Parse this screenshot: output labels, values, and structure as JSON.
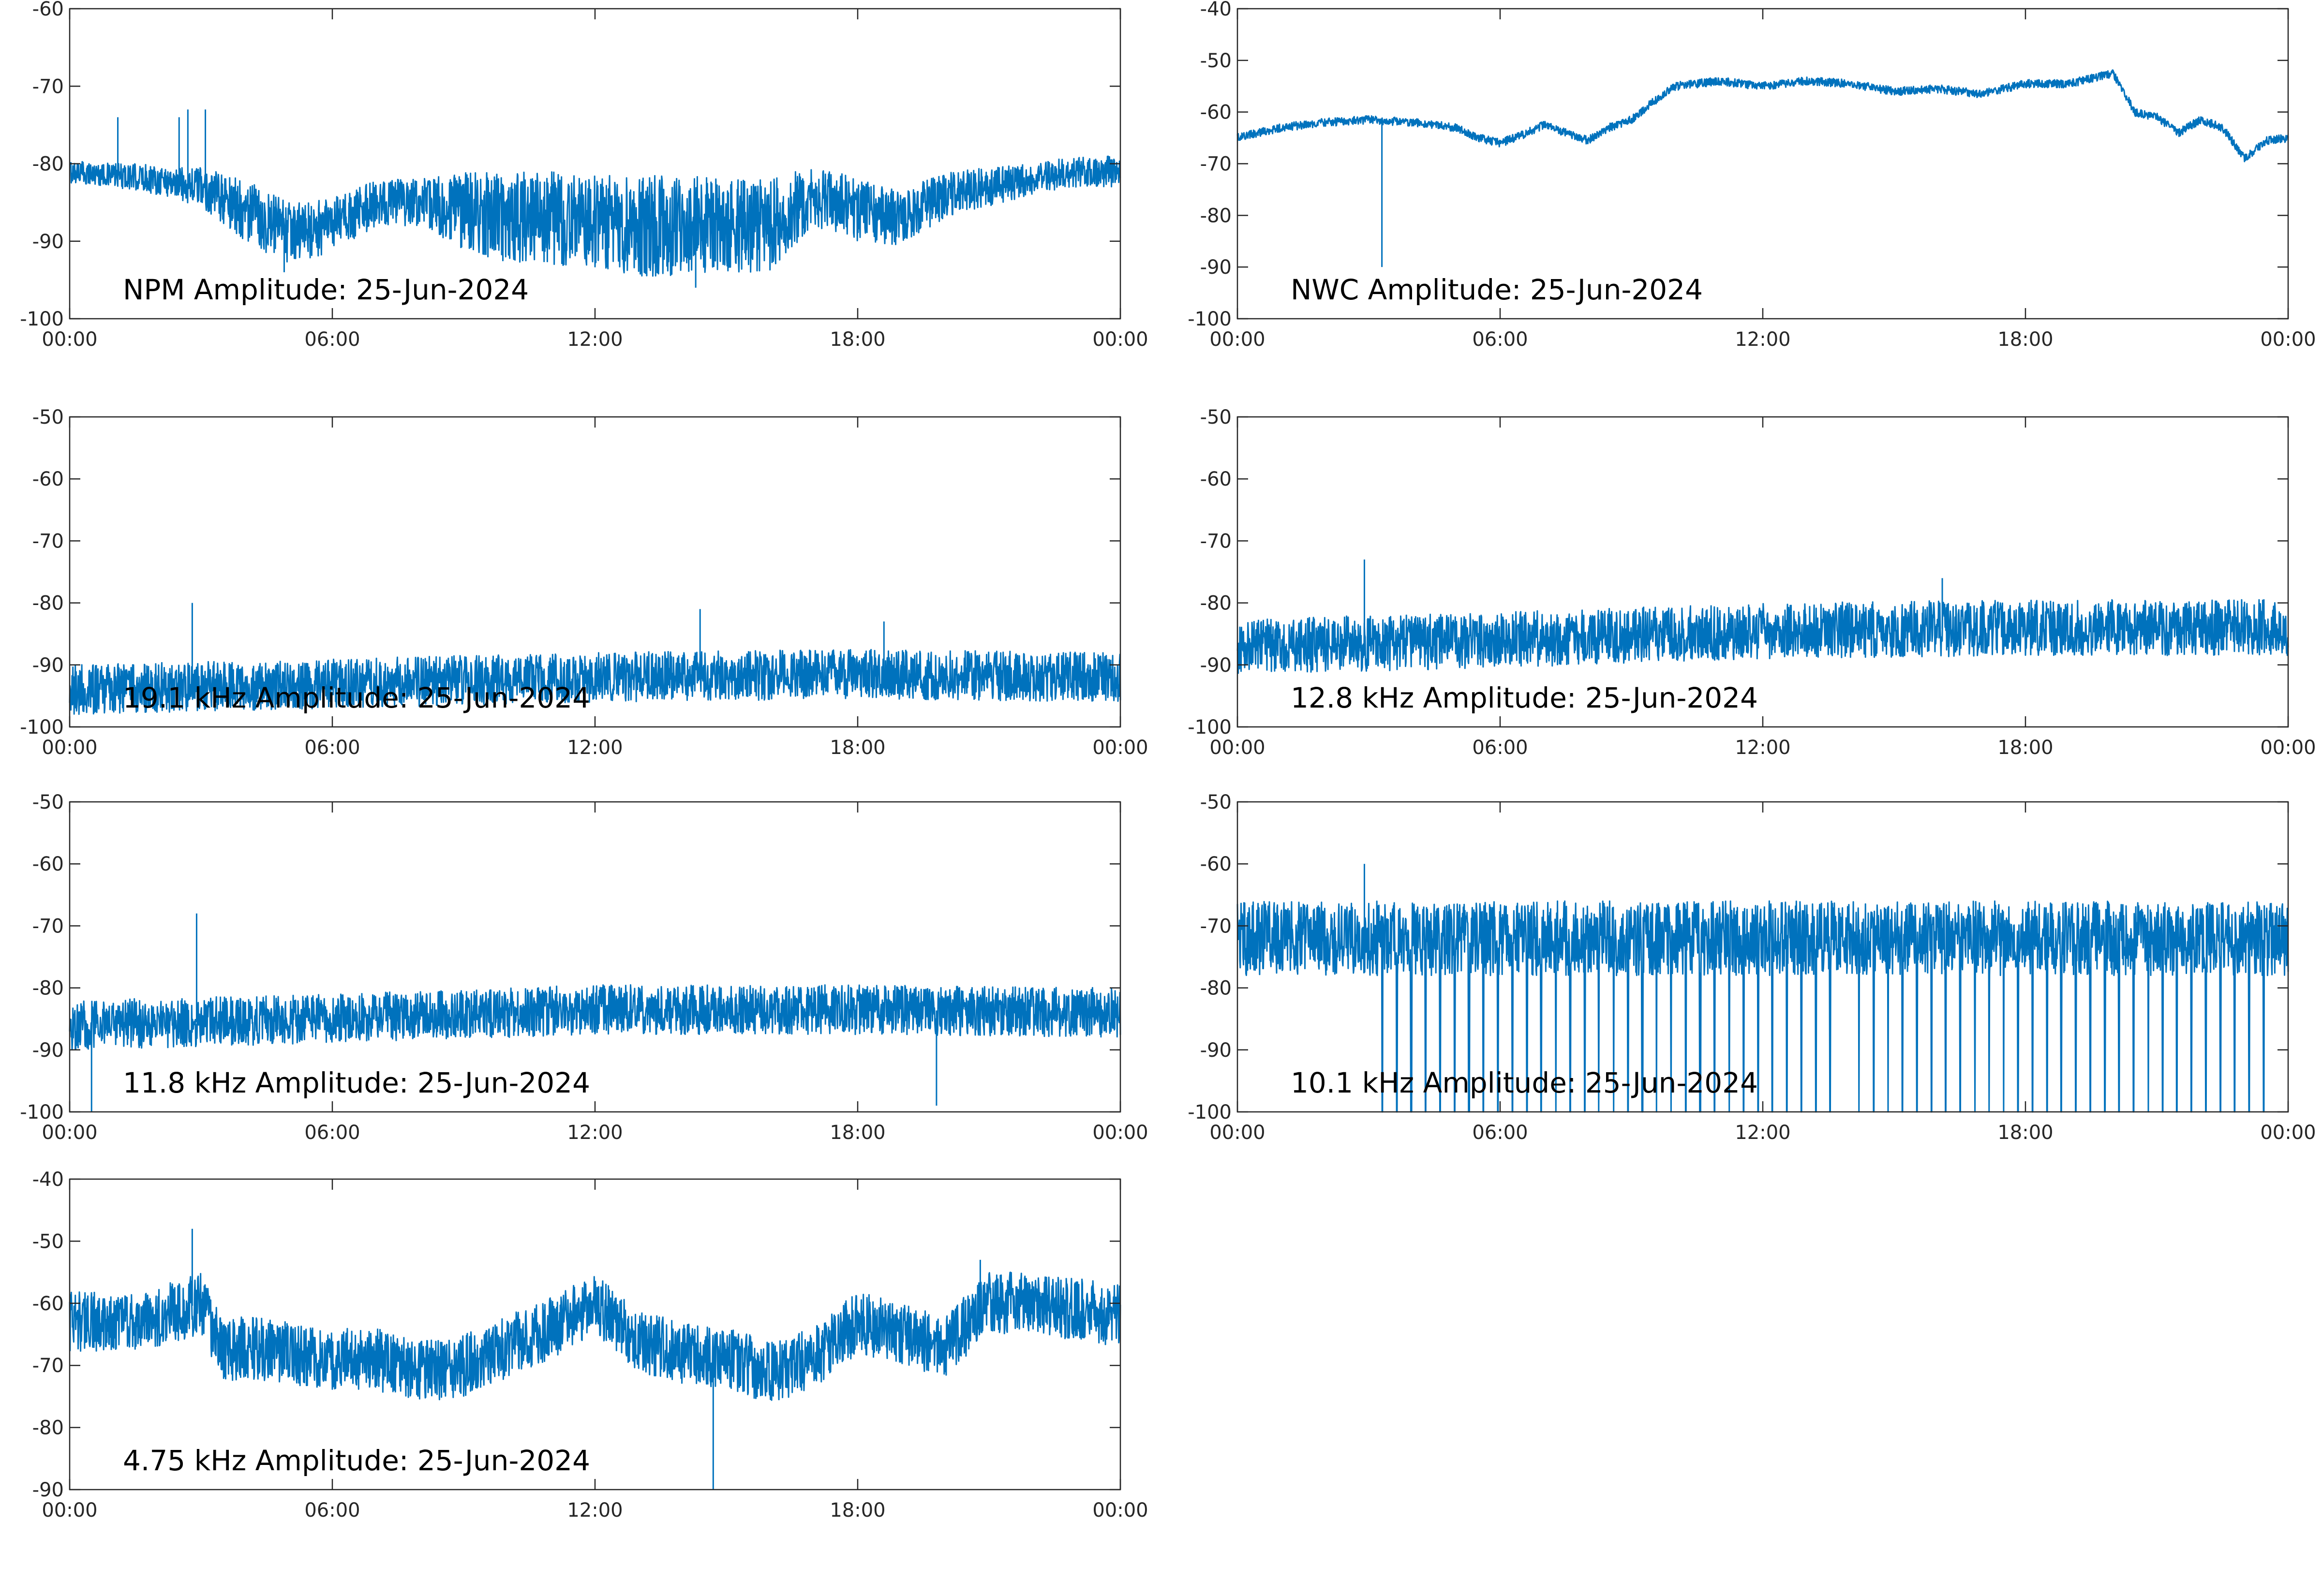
{
  "colors": {
    "line": "#0072bd",
    "axis": "#262626",
    "background": "#ffffff"
  },
  "chart_data": [
    {
      "type": "line",
      "annotation": "NPM Amplitude: 25-Jun-2024",
      "xlim": [
        "00:00",
        "24:00"
      ],
      "xticks": [
        "00:00",
        "06:00",
        "12:00",
        "18:00",
        "00:00"
      ],
      "ylim": [
        -100,
        -60
      ],
      "yticks": [
        -60,
        -70,
        -80,
        -90,
        -100
      ],
      "grid": false,
      "x_hours": [
        0,
        1,
        2,
        3,
        4,
        5,
        6,
        7,
        8,
        9,
        10,
        11,
        12,
        13,
        14,
        15,
        16,
        17,
        18,
        19,
        20,
        21,
        22,
        23,
        24
      ],
      "center": [
        -81,
        -81.5,
        -82,
        -83,
        -86,
        -89,
        -88,
        -85,
        -85,
        -86,
        -87,
        -87,
        -87.5,
        -88,
        -88,
        -88,
        -88,
        -84,
        -86,
        -87,
        -84,
        -83,
        -82,
        -81,
        -81
      ],
      "spread": [
        1.5,
        1.5,
        2,
        2.5,
        4,
        4,
        3.5,
        3,
        3,
        5,
        6,
        6,
        6,
        6.5,
        6.5,
        6,
        6,
        4,
        4,
        3.5,
        3,
        2.5,
        2,
        2,
        2
      ],
      "spikes": [
        {
          "x": 1.1,
          "y": -74
        },
        {
          "x": 2.5,
          "y": -74
        },
        {
          "x": 2.7,
          "y": -73
        },
        {
          "x": 3.1,
          "y": -73
        },
        {
          "x": 4.9,
          "y": -94
        },
        {
          "x": 14.3,
          "y": -96
        }
      ]
    },
    {
      "type": "line",
      "annotation": "NWC Amplitude: 25-Jun-2024",
      "xlim": [
        "00:00",
        "24:00"
      ],
      "xticks": [
        "00:00",
        "06:00",
        "12:00",
        "18:00",
        "00:00"
      ],
      "ylim": [
        -100,
        -40
      ],
      "yticks": [
        -40,
        -50,
        -60,
        -70,
        -80,
        -90,
        -100
      ],
      "grid": false,
      "x_hours": [
        0,
        1,
        2,
        3,
        4,
        5,
        5.5,
        6,
        6.5,
        7,
        7.5,
        8,
        8.5,
        9,
        9.5,
        10,
        11,
        12,
        13,
        14,
        15,
        16,
        17,
        18,
        19,
        20,
        20.5,
        21,
        21.5,
        22,
        22.5,
        23,
        23.5,
        24
      ],
      "center": [
        -65,
        -63,
        -62,
        -61.5,
        -62,
        -63,
        -65,
        -66,
        -64.5,
        -62.5,
        -64,
        -65.5,
        -63,
        -61.5,
        -58,
        -55,
        -54,
        -55,
        -54,
        -54.5,
        -56,
        -55.5,
        -56.5,
        -54.5,
        -54.5,
        -52.5,
        -60,
        -61,
        -64,
        -61.5,
        -63,
        -69,
        -65.5,
        -65
      ],
      "spread": [
        0.8
      ],
      "spikes": [
        {
          "x": 3.3,
          "y": -90
        }
      ]
    },
    {
      "type": "line",
      "annotation": "19.1 kHz Amplitude: 25-Jun-2024",
      "xlim": [
        "00:00",
        "24:00"
      ],
      "xticks": [
        "00:00",
        "06:00",
        "12:00",
        "18:00",
        "00:00"
      ],
      "ylim": [
        -100,
        -50
      ],
      "yticks": [
        -50,
        -60,
        -70,
        -80,
        -90,
        -100
      ],
      "grid": false,
      "x_hours": [
        0,
        6,
        12,
        18,
        24
      ],
      "center": [
        -94,
        -93,
        -92,
        -91.5,
        -92
      ],
      "spread": [
        4
      ],
      "spikes": [
        {
          "x": 2.8,
          "y": -80
        },
        {
          "x": 14.4,
          "y": -81
        },
        {
          "x": 18.6,
          "y": -83
        }
      ]
    },
    {
      "type": "line",
      "annotation": "12.8 kHz Amplitude: 25-Jun-2024",
      "xlim": [
        "00:00",
        "24:00"
      ],
      "xticks": [
        "00:00",
        "06:00",
        "12:00",
        "18:00",
        "00:00"
      ],
      "ylim": [
        -100,
        -50
      ],
      "yticks": [
        -50,
        -60,
        -70,
        -80,
        -90,
        -100
      ],
      "grid": false,
      "x_hours": [
        0,
        6,
        12,
        18,
        24
      ],
      "center": [
        -87,
        -86,
        -84.5,
        -84,
        -84
      ],
      "spread": [
        4.5
      ],
      "spikes": [
        {
          "x": 2.9,
          "y": -73
        },
        {
          "x": 16.1,
          "y": -76
        }
      ]
    },
    {
      "type": "line",
      "annotation": "11.8 kHz Amplitude: 25-Jun-2024",
      "xlim": [
        "00:00",
        "24:00"
      ],
      "xticks": [
        "00:00",
        "06:00",
        "12:00",
        "18:00",
        "00:00"
      ],
      "ylim": [
        -100,
        -50
      ],
      "yticks": [
        -50,
        -60,
        -70,
        -80,
        -90,
        -100
      ],
      "grid": false,
      "x_hours": [
        0,
        6,
        12,
        18,
        24
      ],
      "center": [
        -86,
        -85,
        -83.5,
        -83.5,
        -84
      ],
      "spread": [
        4
      ],
      "spikes": [
        {
          "x": 2.9,
          "y": -68
        },
        {
          "x": 0.5,
          "y": -100
        },
        {
          "x": 19.8,
          "y": -99
        }
      ]
    },
    {
      "type": "line",
      "annotation": "10.1 kHz Amplitude: 25-Jun-2024",
      "xlim": [
        "00:00",
        "24:00"
      ],
      "xticks": [
        "00:00",
        "06:00",
        "12:00",
        "18:00",
        "00:00"
      ],
      "ylim": [
        -100,
        -50
      ],
      "yticks": [
        -50,
        -60,
        -70,
        -80,
        -90,
        -100
      ],
      "grid": false,
      "x_hours": [
        0,
        3,
        6,
        12,
        18,
        24
      ],
      "center": [
        -72,
        -72,
        -72,
        -72,
        -72,
        -72
      ],
      "spread": [
        6
      ],
      "dropouts": {
        "start_hour": 3.3,
        "period_hour": 0.33,
        "floor": -100
      },
      "spikes": [
        {
          "x": 2.9,
          "y": -60
        }
      ]
    },
    {
      "type": "line",
      "annotation": "4.75 kHz Amplitude: 25-Jun-2024",
      "xlim": [
        "00:00",
        "24:00"
      ],
      "xticks": [
        "00:00",
        "06:00",
        "12:00",
        "18:00",
        "00:00"
      ],
      "ylim": [
        -90,
        -40
      ],
      "yticks": [
        -40,
        -50,
        -60,
        -70,
        -80,
        -90
      ],
      "grid": false,
      "x_hours": [
        0,
        1,
        2,
        3,
        3.5,
        4,
        5,
        6,
        7,
        8,
        9,
        10,
        11,
        12,
        13,
        14,
        15,
        16,
        17,
        18,
        19,
        20,
        21,
        22,
        23,
        24
      ],
      "center": [
        -63,
        -63,
        -62,
        -60,
        -68,
        -67,
        -68,
        -69,
        -69,
        -71,
        -70,
        -67,
        -64,
        -60,
        -66,
        -68,
        -69,
        -71,
        -69,
        -63,
        -65,
        -67,
        -60,
        -60,
        -61,
        -62
      ],
      "spread": [
        5
      ],
      "spikes": [
        {
          "x": 2.8,
          "y": -48
        },
        {
          "x": 14.7,
          "y": -90
        },
        {
          "x": 20.8,
          "y": -53
        }
      ]
    }
  ]
}
